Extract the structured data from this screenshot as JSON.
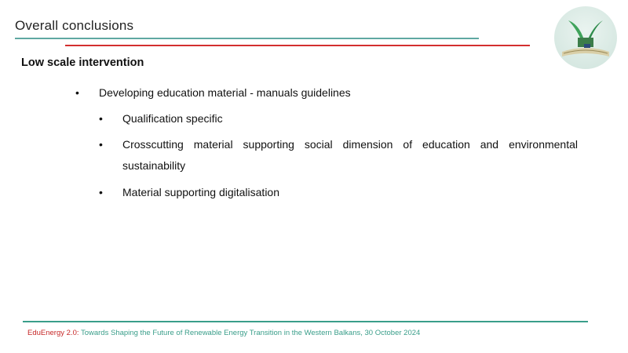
{
  "header": {
    "title": "Overall conclusions"
  },
  "content": {
    "subtitle": "Low scale intervention",
    "bullet": "•",
    "items": [
      "Developing education material - manuals guidelines",
      "Qualification specific",
      "Crosscutting material supporting social dimension of education and environmental",
      "sustainability",
      "Material supporting digitalisation"
    ]
  },
  "footer": {
    "brand": "EduEnergy 2.0:",
    "text": " Towards Shaping the Future of Renewable Energy Transition in the Western Balkans, 30 October 2024"
  },
  "colors": {
    "accent_teal": "#3a9e8a",
    "accent_red": "#d32f2f"
  }
}
